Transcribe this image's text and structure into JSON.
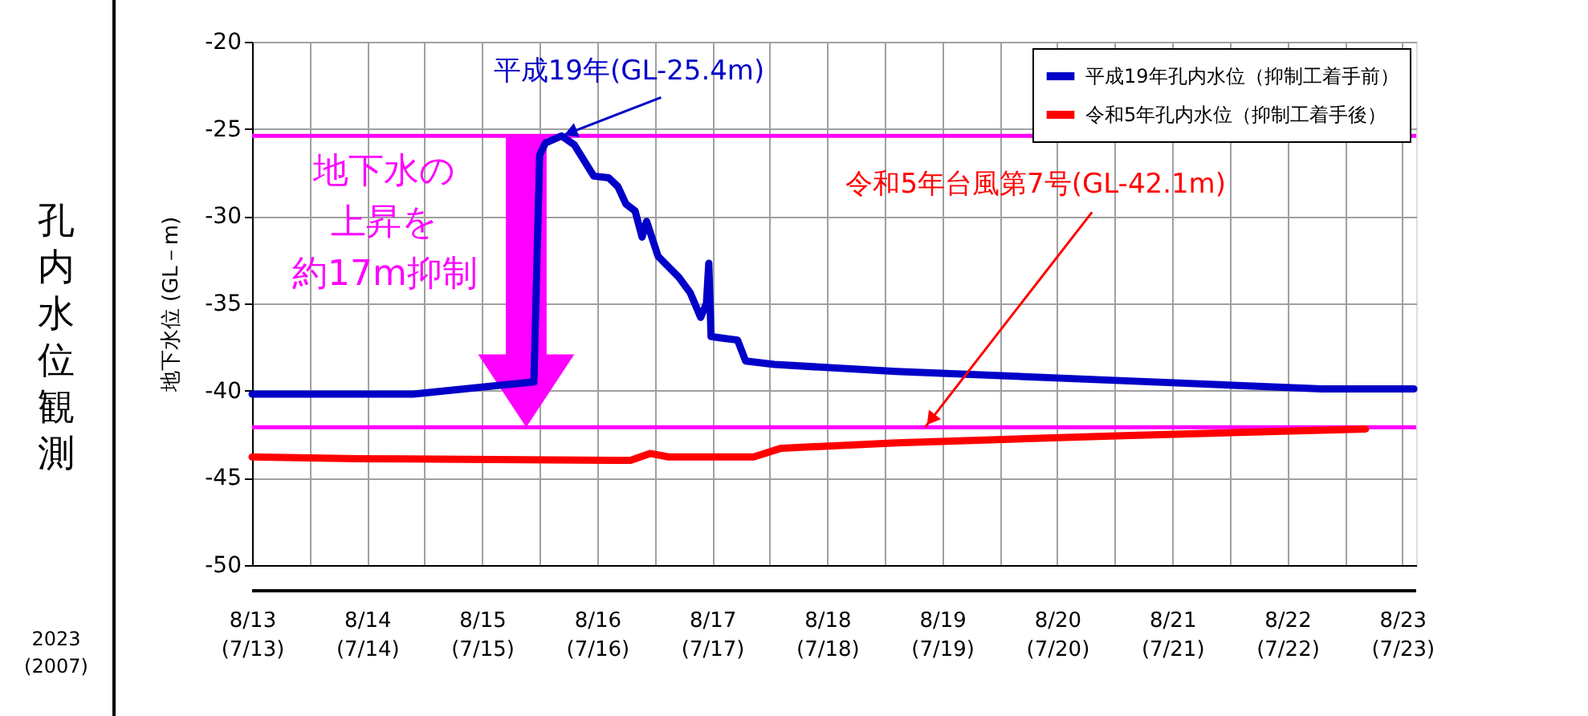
{
  "chart_data": {
    "type": "line",
    "ylabel": "地下水位 (GL－m)",
    "xlim": [
      "2023-08-13T00:00",
      "2023-08-23T02:53"
    ],
    "ylim": [
      -50,
      -20
    ],
    "yticks": [
      -50,
      -45,
      -40,
      -35,
      -30,
      -25,
      -20
    ],
    "xticks": [
      {
        "value": "2023-08-13T00:00",
        "label": "8/13\n(7/13)"
      },
      {
        "value": "2023-08-13T12:00",
        "label": null
      },
      {
        "value": "2023-08-14T00:00",
        "label": "8/14\n(7/14)"
      },
      {
        "value": "2023-08-14T12:00",
        "label": null
      },
      {
        "value": "2023-08-15T00:00",
        "label": "8/15\n(7/15)"
      },
      {
        "value": "2023-08-15T12:00",
        "label": null
      },
      {
        "value": "2023-08-16T00:00",
        "label": "8/16\n(7/16)"
      },
      {
        "value": "2023-08-16T12:00",
        "label": null
      },
      {
        "value": "2023-08-17T00:00",
        "label": "8/17\n(7/17)"
      },
      {
        "value": "2023-08-17T12:00",
        "label": null
      },
      {
        "value": "2023-08-18T00:00",
        "label": "8/18\n(7/18)"
      },
      {
        "value": "2023-08-18T12:00",
        "label": null
      },
      {
        "value": "2023-08-19T00:00",
        "label": "8/19\n(7/19)"
      },
      {
        "value": "2023-08-19T12:00",
        "label": null
      },
      {
        "value": "2023-08-20T00:00",
        "label": "8/20\n(7/20)"
      },
      {
        "value": "2023-08-20T12:00",
        "label": null
      },
      {
        "value": "2023-08-21T00:00",
        "label": "8/21\n(7/21)"
      },
      {
        "value": "2023-08-21T12:00",
        "label": null
      },
      {
        "value": "2023-08-22T00:00",
        "label": "8/22\n(7/22)"
      },
      {
        "value": "2023-08-22T12:00",
        "label": null
      },
      {
        "value": "2023-08-23T00:00",
        "label": "8/23\n(7/23)"
      }
    ],
    "series": [
      {
        "name": "平成19年孔内水位（抑制工着手前）",
        "color": "#0000c8",
        "x": [
          "2023-08-13T00:00",
          "2023-08-14T09:36",
          "2023-08-15T00:00",
          "2023-08-15T10:48",
          "2023-08-15T12:00",
          "2023-08-15T13:12",
          "2023-08-15T16:34",
          "2023-08-15T19:12",
          "2023-08-15T23:17",
          "2023-08-16T02:24",
          "2023-08-16T04:19",
          "2023-08-16T06:00",
          "2023-08-16T07:55",
          "2023-08-16T09:22",
          "2023-08-16T10:19",
          "2023-08-16T12:43",
          "2023-08-16T17:02",
          "2023-08-16T19:26",
          "2023-08-16T21:36",
          "2023-08-16T22:48",
          "2023-08-16T23:17",
          "2023-08-16T23:46",
          "2023-08-17T02:24",
          "2023-08-17T05:17",
          "2023-08-17T06:58",
          "2023-08-17T12:58",
          "2023-08-18T14:24",
          "2023-08-20T11:02",
          "2023-08-22T07:12",
          "2023-08-23T02:24"
        ],
        "values": [
          -40.2,
          -40.2,
          -39.8,
          -39.5,
          -26.5,
          -25.8,
          -25.4,
          -25.9,
          -27.7,
          -27.8,
          -28.3,
          -29.3,
          -29.7,
          -31.2,
          -30.3,
          -32.3,
          -33.5,
          -34.4,
          -35.8,
          -35.0,
          -32.7,
          -36.9,
          -37.0,
          -37.1,
          -38.3,
          -38.5,
          -38.9,
          -39.4,
          -39.9,
          -39.9
        ]
      },
      {
        "name": "令和5年孔内水位（抑制工着手後）",
        "color": "#ff0000",
        "x": [
          "2023-08-13T00:00",
          "2023-08-13T22:19",
          "2023-08-16T06:58",
          "2023-08-16T11:02",
          "2023-08-16T14:53",
          "2023-08-17T08:38",
          "2023-08-17T14:24",
          "2023-08-18T14:24",
          "2023-08-20T11:02",
          "2023-08-22T16:19"
        ],
        "values": [
          -43.8,
          -43.9,
          -44.0,
          -43.6,
          -43.8,
          -43.8,
          -43.3,
          -43.0,
          -42.6,
          -42.2
        ]
      }
    ],
    "ref_lines": [
      {
        "axis": "y",
        "value": -25.4,
        "color": "#ff00ff"
      },
      {
        "axis": "y",
        "value": -42.1,
        "color": "#ff00ff"
      }
    ],
    "annotations": [
      {
        "text": "平成19年(GL-25.4m)",
        "x": "2023-08-15T16:34",
        "y": -25.4
      },
      {
        "text": "令和5年台風第7号(GL-42.1m)",
        "x": "2023-08-18T20:24",
        "y": -42.1
      },
      "地下水の上昇を約17m抑制",
      "孔内水位観測",
      "2023\n(2007)"
    ],
    "grid": true,
    "legend": "top right",
    "marker": "none",
    "line_style": "solid"
  }
}
